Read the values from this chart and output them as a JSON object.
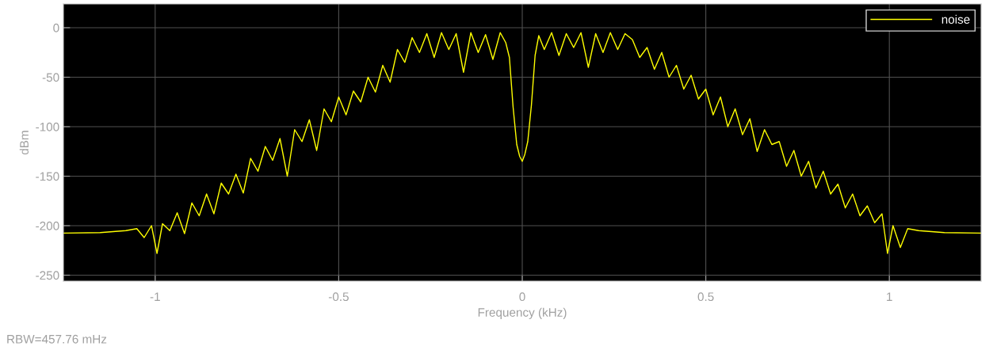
{
  "chart_data": {
    "type": "line",
    "xlabel": "Frequency (kHz)",
    "ylabel": "dBm",
    "xlim": [
      -1.25,
      1.25
    ],
    "xticks": [
      -1,
      -0.5,
      0,
      0.5,
      1
    ],
    "ylim": [
      -256,
      24
    ],
    "yticks": [
      -250,
      -200,
      -150,
      -100,
      -50,
      0
    ],
    "grid": true,
    "legend": "top right",
    "annotations": [
      "RBW=457.76 mHz"
    ],
    "series": [
      {
        "name": "noise",
        "color": "#ffff00",
        "x": [
          -1.25,
          -1.15,
          -1.08,
          -1.05,
          -1.03,
          -1.01,
          -0.995,
          -0.98,
          -0.96,
          -0.94,
          -0.92,
          -0.9,
          -0.88,
          -0.86,
          -0.84,
          -0.82,
          -0.8,
          -0.78,
          -0.76,
          -0.74,
          -0.72,
          -0.7,
          -0.68,
          -0.66,
          -0.64,
          -0.62,
          -0.6,
          -0.58,
          -0.56,
          -0.54,
          -0.52,
          -0.5,
          -0.48,
          -0.46,
          -0.44,
          -0.42,
          -0.4,
          -0.38,
          -0.36,
          -0.34,
          -0.32,
          -0.3,
          -0.28,
          -0.26,
          -0.24,
          -0.22,
          -0.2,
          -0.18,
          -0.16,
          -0.14,
          -0.12,
          -0.1,
          -0.08,
          -0.06,
          -0.045,
          -0.035,
          -0.025,
          -0.015,
          -0.007,
          0,
          0.007,
          0.015,
          0.025,
          0.035,
          0.045,
          0.06,
          0.08,
          0.1,
          0.12,
          0.14,
          0.16,
          0.18,
          0.2,
          0.22,
          0.24,
          0.26,
          0.28,
          0.3,
          0.32,
          0.34,
          0.36,
          0.38,
          0.4,
          0.42,
          0.44,
          0.46,
          0.48,
          0.5,
          0.52,
          0.54,
          0.56,
          0.58,
          0.6,
          0.62,
          0.64,
          0.66,
          0.68,
          0.7,
          0.72,
          0.74,
          0.76,
          0.78,
          0.8,
          0.82,
          0.84,
          0.86,
          0.88,
          0.9,
          0.92,
          0.94,
          0.96,
          0.98,
          0.995,
          1.01,
          1.03,
          1.05,
          1.08,
          1.15,
          1.25
        ],
        "values": [
          -207.5,
          -207,
          -205,
          -203,
          -212,
          -200,
          -228,
          -198,
          -205,
          -187,
          -208,
          -177,
          -190,
          -168,
          -188,
          -157,
          -168,
          -148,
          -167,
          -132,
          -145,
          -120,
          -134,
          -112,
          -150,
          -103,
          -115,
          -93,
          -124,
          -82,
          -95,
          -70,
          -88,
          -64,
          -75,
          -50,
          -65,
          -38,
          -55,
          -22,
          -35,
          -10,
          -25,
          -6,
          -30,
          -5,
          -22,
          -6,
          -45,
          -5,
          -25,
          -7,
          -32,
          -5,
          -15,
          -30,
          -80,
          -118,
          -130,
          -135,
          -128,
          -115,
          -78,
          -28,
          -8,
          -22,
          -5,
          -28,
          -6,
          -20,
          -5,
          -40,
          -6,
          -25,
          -5,
          -22,
          -6,
          -12,
          -30,
          -20,
          -42,
          -25,
          -50,
          -38,
          -62,
          -48,
          -72,
          -62,
          -88,
          -70,
          -100,
          -82,
          -108,
          -92,
          -125,
          -103,
          -118,
          -115,
          -140,
          -124,
          -150,
          -135,
          -162,
          -145,
          -168,
          -158,
          -182,
          -168,
          -190,
          -180,
          -197,
          -188,
          -228,
          -200,
          -222,
          -203,
          -205,
          -207,
          -207.5
        ]
      }
    ]
  }
}
